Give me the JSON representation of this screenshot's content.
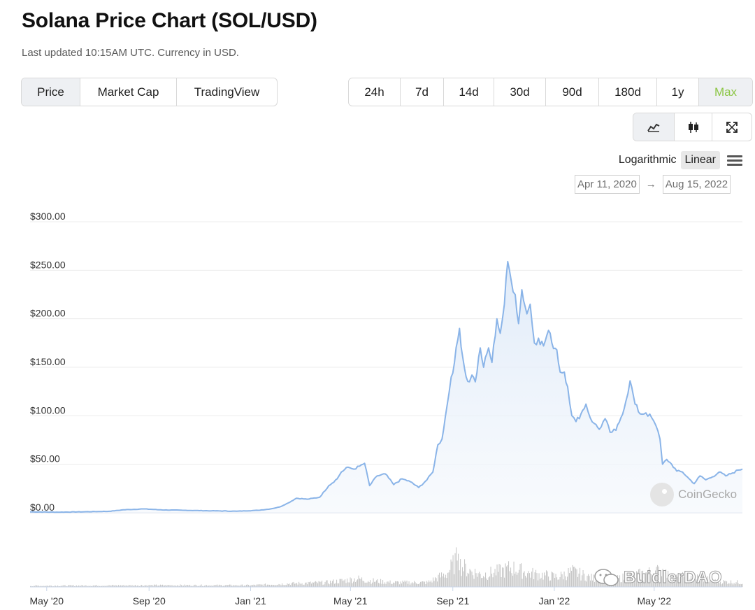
{
  "header": {
    "title": "Solana Price Chart (SOL/USD)",
    "subtitle": "Last updated 10:15AM UTC. Currency in USD."
  },
  "metric_tabs": [
    {
      "label": "Price",
      "active": true
    },
    {
      "label": "Market Cap",
      "active": false
    },
    {
      "label": "TradingView",
      "active": false
    }
  ],
  "range_tabs": [
    {
      "label": "24h",
      "active": false
    },
    {
      "label": "7d",
      "active": false
    },
    {
      "label": "14d",
      "active": false
    },
    {
      "label": "30d",
      "active": false
    },
    {
      "label": "90d",
      "active": false
    },
    {
      "label": "180d",
      "active": false
    },
    {
      "label": "1y",
      "active": false
    },
    {
      "label": "Max",
      "active": true
    }
  ],
  "view_tabs": [
    {
      "icon": "line-chart-icon",
      "active": true
    },
    {
      "icon": "candlestick-icon",
      "active": false
    },
    {
      "icon": "fullscreen-icon",
      "active": false
    }
  ],
  "scale": {
    "options": [
      "Logarithmic",
      "Linear"
    ],
    "selected": "Linear"
  },
  "date_range": {
    "from": "Apr 11, 2020",
    "to": "Aug 15, 2022"
  },
  "colors": {
    "line": "#8ab4e8",
    "fill_top": "#dde9f8",
    "accent": "#8dc647",
    "volume": "#c8c8c8"
  },
  "watermarks": {
    "provider": "CoinGecko",
    "overlay": "BuidlerDAO"
  },
  "chart_data": {
    "type": "area",
    "title": "Solana Price Chart (SOL/USD)",
    "ylabel": "",
    "xlabel": "",
    "ylim": [
      0,
      300
    ],
    "yticks": [
      "$0.00",
      "$50.00",
      "$100.00",
      "$150.00",
      "$200.00",
      "$250.00",
      "$300.00"
    ],
    "xticks": [
      {
        "label": "May '20",
        "date": "2020-05-01"
      },
      {
        "label": "Sep '20",
        "date": "2020-09-01"
      },
      {
        "label": "Jan '21",
        "date": "2021-01-01"
      },
      {
        "label": "May '21",
        "date": "2021-05-01"
      },
      {
        "label": "Sep '21",
        "date": "2021-09-01"
      },
      {
        "label": "Jan '22",
        "date": "2022-01-01"
      },
      {
        "label": "May '22",
        "date": "2022-05-01"
      }
    ],
    "x_range": [
      "2020-04-11",
      "2022-08-15"
    ],
    "series": [
      {
        "points": [
          [
            "2020-04-11",
            0.9
          ],
          [
            "2020-05-15",
            0.6
          ],
          [
            "2020-06-15",
            1
          ],
          [
            "2020-07-15",
            1.5
          ],
          [
            "2020-08-01",
            3
          ],
          [
            "2020-08-25",
            4
          ],
          [
            "2020-09-15",
            3
          ],
          [
            "2020-10-15",
            2.5
          ],
          [
            "2020-11-15",
            2
          ],
          [
            "2020-12-15",
            1.6
          ],
          [
            "2021-01-10",
            2.5
          ],
          [
            "2021-01-25",
            4
          ],
          [
            "2021-02-05",
            6
          ],
          [
            "2021-02-15",
            10
          ],
          [
            "2021-02-25",
            15
          ],
          [
            "2021-03-10",
            14
          ],
          [
            "2021-03-25",
            16
          ],
          [
            "2021-04-05",
            28
          ],
          [
            "2021-04-15",
            35
          ],
          [
            "2021-04-20",
            42
          ],
          [
            "2021-04-28",
            47
          ],
          [
            "2021-05-05",
            45
          ],
          [
            "2021-05-12",
            48
          ],
          [
            "2021-05-18",
            51
          ],
          [
            "2021-05-24",
            28
          ],
          [
            "2021-06-02",
            38
          ],
          [
            "2021-06-12",
            40
          ],
          [
            "2021-06-22",
            29
          ],
          [
            "2021-07-02",
            35
          ],
          [
            "2021-07-12",
            32
          ],
          [
            "2021-07-22",
            26
          ],
          [
            "2021-08-01",
            34
          ],
          [
            "2021-08-08",
            42
          ],
          [
            "2021-08-14",
            70
          ],
          [
            "2021-08-19",
            76
          ],
          [
            "2021-08-25",
            110
          ],
          [
            "2021-08-30",
            140
          ],
          [
            "2021-09-03",
            155
          ],
          [
            "2021-09-09",
            190
          ],
          [
            "2021-09-13",
            160
          ],
          [
            "2021-09-17",
            140
          ],
          [
            "2021-09-21",
            135
          ],
          [
            "2021-09-24",
            142
          ],
          [
            "2021-09-28",
            135
          ],
          [
            "2021-10-04",
            170
          ],
          [
            "2021-10-08",
            150
          ],
          [
            "2021-10-14",
            170
          ],
          [
            "2021-10-18",
            155
          ],
          [
            "2021-10-24",
            200
          ],
          [
            "2021-10-28",
            185
          ],
          [
            "2021-11-02",
            215
          ],
          [
            "2021-11-06",
            259
          ],
          [
            "2021-11-10",
            240
          ],
          [
            "2021-11-15",
            225
          ],
          [
            "2021-11-19",
            195
          ],
          [
            "2021-11-23",
            230
          ],
          [
            "2021-11-29",
            205
          ],
          [
            "2021-12-03",
            215
          ],
          [
            "2021-12-08",
            175
          ],
          [
            "2021-12-13",
            180
          ],
          [
            "2021-12-19",
            172
          ],
          [
            "2021-12-25",
            188
          ],
          [
            "2021-12-29",
            175
          ],
          [
            "2022-01-04",
            168
          ],
          [
            "2022-01-08",
            145
          ],
          [
            "2022-01-13",
            145
          ],
          [
            "2022-01-17",
            130
          ],
          [
            "2022-01-22",
            100
          ],
          [
            "2022-01-27",
            94
          ],
          [
            "2022-02-02",
            102
          ],
          [
            "2022-02-08",
            112
          ],
          [
            "2022-02-13",
            98
          ],
          [
            "2022-02-18",
            92
          ],
          [
            "2022-02-24",
            86
          ],
          [
            "2022-03-03",
            97
          ],
          [
            "2022-03-09",
            83
          ],
          [
            "2022-03-16",
            85
          ],
          [
            "2022-03-22",
            98
          ],
          [
            "2022-03-28",
            115
          ],
          [
            "2022-04-02",
            136
          ],
          [
            "2022-04-08",
            112
          ],
          [
            "2022-04-14",
            102
          ],
          [
            "2022-04-21",
            103
          ],
          [
            "2022-04-28",
            98
          ],
          [
            "2022-05-03",
            90
          ],
          [
            "2022-05-08",
            76
          ],
          [
            "2022-05-11",
            50
          ],
          [
            "2022-05-16",
            55
          ],
          [
            "2022-05-22",
            50
          ],
          [
            "2022-05-28",
            43
          ],
          [
            "2022-06-04",
            42
          ],
          [
            "2022-06-12",
            35
          ],
          [
            "2022-06-18",
            30
          ],
          [
            "2022-06-25",
            38
          ],
          [
            "2022-07-02",
            34
          ],
          [
            "2022-07-10",
            37
          ],
          [
            "2022-07-18",
            42
          ],
          [
            "2022-07-26",
            38
          ],
          [
            "2022-08-03",
            41
          ],
          [
            "2022-08-10",
            44
          ],
          [
            "2022-08-15",
            45
          ]
        ]
      }
    ],
    "volume": {
      "points": [
        [
          "2020-04-11",
          0.02
        ],
        [
          "2020-09-01",
          0.03
        ],
        [
          "2021-01-01",
          0.03
        ],
        [
          "2021-02-15",
          0.06
        ],
        [
          "2021-04-01",
          0.08
        ],
        [
          "2021-04-25",
          0.12
        ],
        [
          "2021-05-10",
          0.15
        ],
        [
          "2021-05-20",
          0.12
        ],
        [
          "2021-06-20",
          0.08
        ],
        [
          "2021-08-01",
          0.08
        ],
        [
          "2021-08-25",
          0.25
        ],
        [
          "2021-09-05",
          0.5
        ],
        [
          "2021-09-07",
          1.0
        ],
        [
          "2021-09-09",
          0.4
        ],
        [
          "2021-09-20",
          0.3
        ],
        [
          "2021-10-05",
          0.22
        ],
        [
          "2021-11-01",
          0.3
        ],
        [
          "2021-11-10",
          0.35
        ],
        [
          "2021-12-01",
          0.25
        ],
        [
          "2022-01-05",
          0.18
        ],
        [
          "2022-01-22",
          0.28
        ],
        [
          "2022-02-15",
          0.16
        ],
        [
          "2022-03-15",
          0.14
        ],
        [
          "2022-04-02",
          0.2
        ],
        [
          "2022-05-11",
          0.3
        ],
        [
          "2022-05-20",
          0.16
        ],
        [
          "2022-06-15",
          0.2
        ],
        [
          "2022-07-15",
          0.1
        ],
        [
          "2022-08-15",
          0.08
        ]
      ]
    }
  }
}
